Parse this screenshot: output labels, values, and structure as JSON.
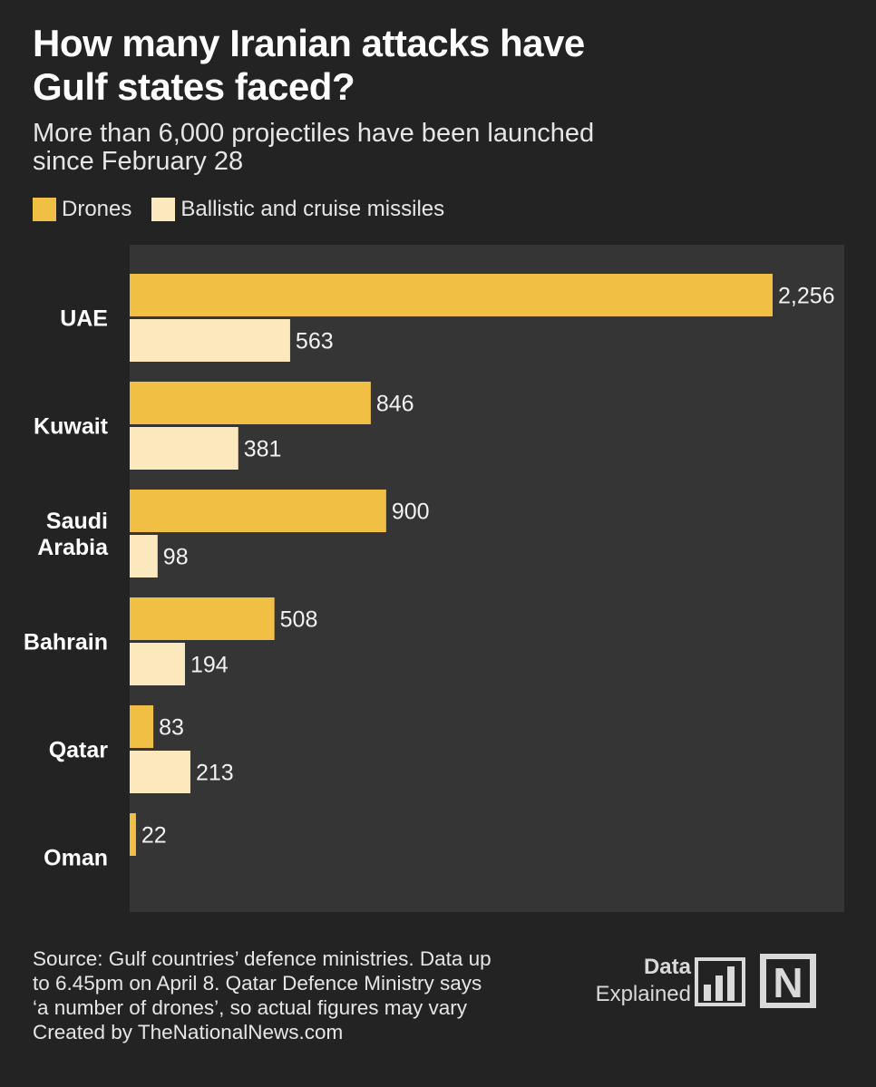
{
  "title_line1": "How many Iranian attacks have",
  "title_line2": "Gulf states faced?",
  "subtitle_line1": "More than 6,000 projectiles have been launched",
  "subtitle_line2": "since February 28",
  "colors": {
    "drones": "#f2bf45",
    "missiles": "#fbe9bd",
    "plot_bg": "#353535",
    "page_bg": "#232323"
  },
  "chart_data": {
    "type": "bar",
    "orientation": "horizontal",
    "title": "How many Iranian attacks have Gulf states faced?",
    "subtitle": "More than 6,000 projectiles have been launched since February 28",
    "categories": [
      "UAE",
      "Kuwait",
      "Saudi Arabia",
      "Bahrain",
      "Qatar",
      "Oman"
    ],
    "category_labels": [
      [
        "UAE"
      ],
      [
        "Kuwait"
      ],
      [
        "Saudi",
        "Arabia"
      ],
      [
        "Bahrain"
      ],
      [
        "Qatar"
      ],
      [
        "Oman"
      ]
    ],
    "series": [
      {
        "name": "Drones",
        "values": [
          2256,
          846,
          900,
          508,
          83,
          22
        ],
        "labels": [
          "2,256",
          "846",
          "900",
          "508",
          "83",
          "22"
        ],
        "color": "#f2bf45"
      },
      {
        "name": "Ballistic and cruise missiles",
        "values": [
          563,
          381,
          98,
          194,
          213,
          null
        ],
        "labels": [
          "563",
          "381",
          "98",
          "194",
          "213",
          ""
        ],
        "color": "#fbe9bd"
      }
    ],
    "xlim": [
      0,
      2500
    ],
    "legend_position": "top-left",
    "grid": false
  },
  "footer": {
    "line1": "Source: Gulf countries’ defence ministries. Data up",
    "line2": "to 6.45pm on April 8. Qatar Defence Ministry says",
    "line3": "‘a number of drones’, so actual figures may vary",
    "line4": "Created by TheNationalNews.com"
  },
  "brand": {
    "line1": "Data",
    "line2": "Explained",
    "bars_icon": "bar-chart-icon",
    "logo_icon": "the-national-logo-icon",
    "logo_letter": "N"
  }
}
